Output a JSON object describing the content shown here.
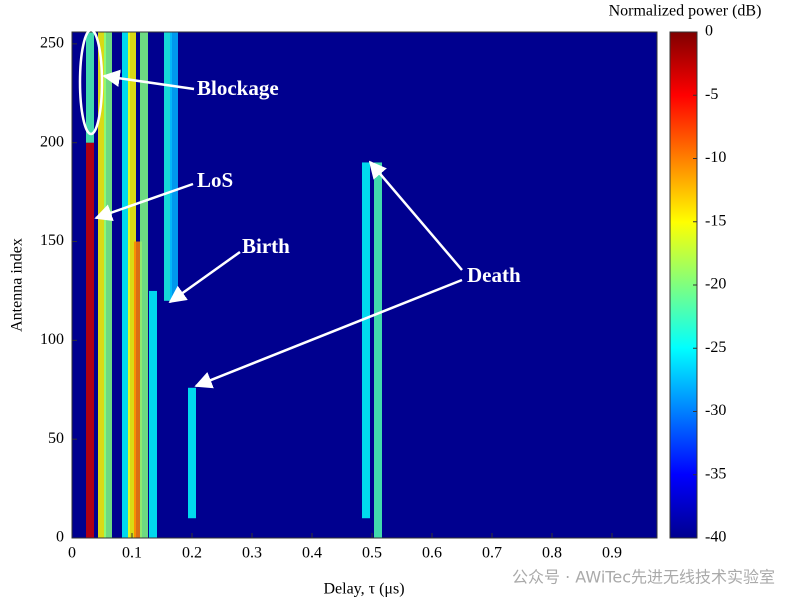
{
  "chart_data": {
    "type": "heatmap",
    "x_label": "Delay, τ (μs)",
    "y_label": "Antenna index",
    "xlim": [
      0,
      0.975
    ],
    "xticks": [
      0,
      0.1,
      0.2,
      0.3,
      0.4,
      0.5,
      0.6,
      0.7,
      0.8,
      0.9
    ],
    "ylim": [
      0,
      256
    ],
    "yticks": [
      0,
      50,
      100,
      150,
      200,
      250
    ],
    "colormap": "jet",
    "colorbar_label": "Normalized power (dB)",
    "clim": [
      -40,
      0
    ],
    "cticks": [
      0,
      -5,
      -10,
      -15,
      -20,
      -25,
      -30,
      -35,
      -40
    ],
    "traces": [
      {
        "delay": 0.03,
        "antenna": [
          0,
          200
        ],
        "power": -3
      },
      {
        "delay": 0.03,
        "antenna": [
          200,
          256
        ],
        "power": -22
      },
      {
        "delay": 0.05,
        "antenna": [
          0,
          256
        ],
        "power": -15
      },
      {
        "delay": 0.06,
        "antenna": [
          0,
          256
        ],
        "power": -20
      },
      {
        "delay": 0.09,
        "antenna": [
          0,
          256
        ],
        "power": -25
      },
      {
        "delay": 0.1,
        "antenna": [
          0,
          256
        ],
        "power": -15
      },
      {
        "delay": 0.11,
        "antenna": [
          0,
          150
        ],
        "power": -10
      },
      {
        "delay": 0.12,
        "antenna": [
          0,
          256
        ],
        "power": -20
      },
      {
        "delay": 0.135,
        "antenna": [
          0,
          125
        ],
        "power": -25
      },
      {
        "delay": 0.16,
        "antenna": [
          120,
          256
        ],
        "power": -24
      },
      {
        "delay": 0.17,
        "antenna": [
          120,
          256
        ],
        "power": -28
      },
      {
        "delay": 0.2,
        "antenna": [
          10,
          76
        ],
        "power": -25
      },
      {
        "delay": 0.49,
        "antenna": [
          10,
          190
        ],
        "power": -25
      },
      {
        "delay": 0.51,
        "antenna": [
          0,
          190
        ],
        "power": -22
      }
    ],
    "annotations": [
      "Blockage",
      "LoS",
      "Birth",
      "Death"
    ],
    "watermark": "公众号 · AWiTec先进无线技术实验室"
  }
}
